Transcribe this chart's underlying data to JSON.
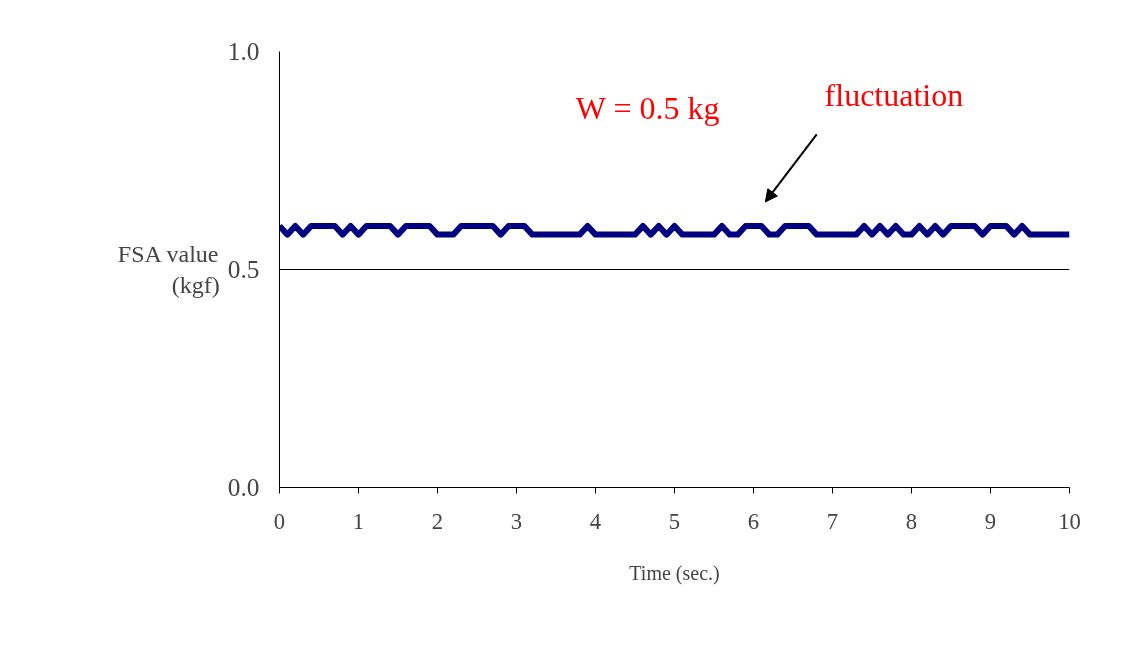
{
  "chart_data": {
    "type": "line",
    "xlabel": "Time (sec.)",
    "ylabel": "FSA value\n(kgf)",
    "x": [
      0,
      0.1,
      0.2,
      0.3,
      0.4,
      0.5,
      0.6,
      0.7,
      0.8,
      0.9,
      1,
      1.1,
      1.2,
      1.3,
      1.4,
      1.5,
      1.6,
      1.7,
      1.8,
      1.9,
      2,
      2.1,
      2.2,
      2.3,
      2.4,
      2.5,
      2.6,
      2.7,
      2.8,
      2.9,
      3,
      3.1,
      3.2,
      3.3,
      3.4,
      3.5,
      3.6,
      3.7,
      3.8,
      3.9,
      4,
      4.1,
      4.2,
      4.3,
      4.4,
      4.5,
      4.6,
      4.7,
      4.8,
      4.9,
      5,
      5.1,
      5.2,
      5.3,
      5.4,
      5.5,
      5.6,
      5.7,
      5.8,
      5.9,
      6,
      6.1,
      6.2,
      6.3,
      6.4,
      6.5,
      6.6,
      6.7,
      6.8,
      6.9,
      7,
      7.1,
      7.2,
      7.3,
      7.4,
      7.5,
      7.6,
      7.7,
      7.8,
      7.9,
      8,
      8.1,
      8.2,
      8.3,
      8.4,
      8.5,
      8.6,
      8.7,
      8.8,
      8.9,
      9,
      9.1,
      9.2,
      9.3,
      9.4,
      9.5,
      9.6,
      9.7,
      9.8,
      9.9,
      10
    ],
    "series": [
      {
        "color": "#000080",
        "values": [
          0.6,
          0.58,
          0.6,
          0.58,
          0.6,
          0.6,
          0.6,
          0.6,
          0.58,
          0.6,
          0.58,
          0.6,
          0.6,
          0.6,
          0.6,
          0.58,
          0.6,
          0.6,
          0.6,
          0.6,
          0.58,
          0.58,
          0.58,
          0.6,
          0.6,
          0.6,
          0.6,
          0.6,
          0.58,
          0.6,
          0.6,
          0.6,
          0.58,
          0.58,
          0.58,
          0.58,
          0.58,
          0.58,
          0.58,
          0.6,
          0.58,
          0.58,
          0.58,
          0.58,
          0.58,
          0.58,
          0.6,
          0.58,
          0.6,
          0.58,
          0.6,
          0.58,
          0.58,
          0.58,
          0.58,
          0.58,
          0.6,
          0.58,
          0.58,
          0.6,
          0.6,
          0.6,
          0.58,
          0.58,
          0.6,
          0.6,
          0.6,
          0.6,
          0.58,
          0.58,
          0.58,
          0.58,
          0.58,
          0.58,
          0.6,
          0.58,
          0.6,
          0.58,
          0.6,
          0.58,
          0.58,
          0.6,
          0.58,
          0.6,
          0.58,
          0.6,
          0.6,
          0.6,
          0.6,
          0.58,
          0.6,
          0.6,
          0.6,
          0.58,
          0.6,
          0.58,
          0.58,
          0.58,
          0.58,
          0.58,
          0.58
        ]
      }
    ],
    "xlim": [
      0,
      10
    ],
    "xticks": [
      0,
      1,
      2,
      3,
      4,
      5,
      6,
      7,
      8,
      9,
      10
    ],
    "ylim": [
      0,
      1
    ],
    "yticks": [
      {
        "value": 0,
        "label": "0.0"
      },
      {
        "value": 0.5,
        "label": "0.5"
      },
      {
        "value": 1,
        "label": "1.0"
      }
    ],
    "grid": "y",
    "marker": "none",
    "line_style": "solid",
    "annotations": [
      "W = 0.5 kg",
      "fluctuation"
    ]
  }
}
